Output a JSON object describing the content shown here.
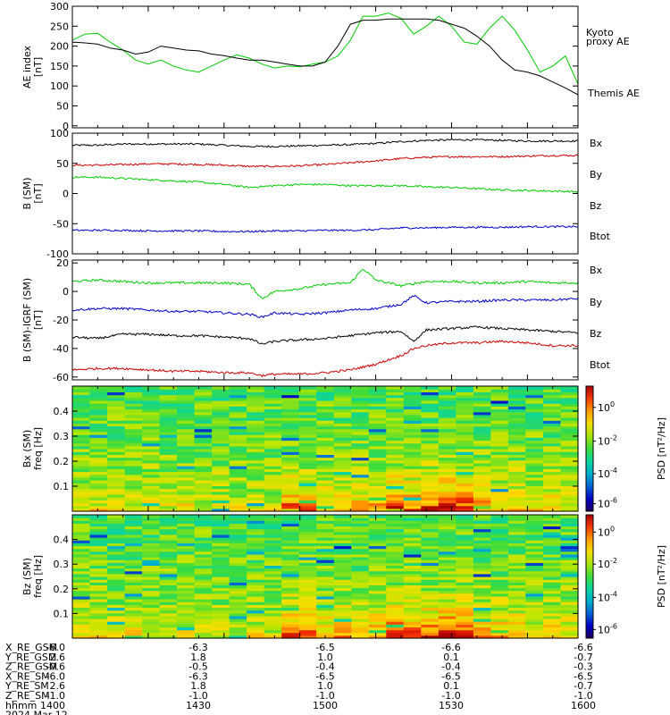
{
  "chart_data": [
    {
      "type": "line",
      "ylabel_line1": "AE index",
      "ylabel_line2": "[nT]",
      "ylim": [
        -5,
        300
      ],
      "yticks": [
        0,
        50,
        100,
        150,
        200,
        250,
        300
      ],
      "xlim": [
        1400,
        1600
      ],
      "legend": [
        {
          "text": "Kyoto",
          "color": "#00cc00"
        },
        {
          "text": "proxy AE",
          "color": "#00cc00"
        },
        {
          "text": "Themis AE",
          "color": "#000000"
        }
      ],
      "series": [
        {
          "name": "Kyoto proxy AE",
          "color": "#00cc00",
          "x": [
            1400,
            1405,
            1410,
            1415,
            1420,
            1425,
            1430,
            1435,
            1440,
            1445,
            1450,
            1455,
            1460,
            1465,
            1470,
            1475,
            1480,
            1485,
            1490,
            1495,
            1500,
            1505,
            1510,
            1515,
            1520,
            1525,
            1530,
            1535,
            1540,
            1545,
            1550,
            1555,
            1560,
            1565,
            1570,
            1575,
            1580,
            1585,
            1590,
            1595,
            1600
          ],
          "y": [
            215,
            230,
            232,
            210,
            190,
            165,
            155,
            165,
            150,
            140,
            135,
            150,
            165,
            178,
            170,
            155,
            145,
            150,
            148,
            155,
            160,
            175,
            215,
            275,
            275,
            283,
            270,
            230,
            250,
            275,
            250,
            210,
            205,
            245,
            275,
            240,
            190,
            135,
            150,
            175,
            105
          ]
        },
        {
          "name": "Themis AE",
          "color": "#000000",
          "x": [
            1400,
            1405,
            1410,
            1415,
            1420,
            1425,
            1430,
            1435,
            1440,
            1445,
            1450,
            1455,
            1460,
            1465,
            1470,
            1475,
            1480,
            1485,
            1490,
            1495,
            1500,
            1505,
            1510,
            1515,
            1520,
            1525,
            1530,
            1535,
            1540,
            1545,
            1550,
            1555,
            1560,
            1565,
            1570,
            1575,
            1580,
            1585,
            1590,
            1595,
            1600
          ],
          "y": [
            210,
            208,
            205,
            195,
            190,
            180,
            185,
            200,
            195,
            190,
            188,
            180,
            176,
            170,
            165,
            165,
            160,
            155,
            150,
            150,
            160,
            200,
            255,
            265,
            265,
            268,
            268,
            268,
            268,
            265,
            255,
            245,
            225,
            200,
            165,
            140,
            135,
            125,
            110,
            95,
            78
          ]
        }
      ]
    },
    {
      "type": "line",
      "ylabel_line1": "B (SM)",
      "ylabel_line2": "[nT]",
      "ylim": [
        -100,
        100
      ],
      "yticks": [
        -100,
        -50,
        0,
        50,
        100
      ],
      "xlim": [
        1400,
        1600
      ],
      "legend": [
        {
          "text": "Bx",
          "color": "#0000cc"
        },
        {
          "text": "By",
          "color": "#00cc00"
        },
        {
          "text": "Bz",
          "color": "#cc0000"
        },
        {
          "text": "Btot",
          "color": "#000000"
        }
      ],
      "series": [
        {
          "color": "#000000",
          "noise": 1.5,
          "x": [
            1400,
            1410,
            1420,
            1430,
            1440,
            1450,
            1460,
            1470,
            1480,
            1490,
            1500,
            1510,
            1520,
            1530,
            1540,
            1550,
            1560,
            1570,
            1580,
            1590,
            1600
          ],
          "y": [
            80,
            80,
            82,
            82,
            82,
            82,
            80,
            78,
            78,
            79,
            80,
            81,
            83,
            86,
            88,
            89,
            89,
            88,
            87,
            87,
            87
          ]
        },
        {
          "color": "#cc0000",
          "noise": 1.5,
          "x": [
            1400,
            1410,
            1420,
            1430,
            1440,
            1450,
            1460,
            1470,
            1480,
            1490,
            1500,
            1510,
            1520,
            1530,
            1540,
            1550,
            1560,
            1570,
            1580,
            1590,
            1600
          ],
          "y": [
            47,
            47,
            48,
            49,
            49,
            48,
            47,
            45,
            45,
            46,
            48,
            51,
            54,
            58,
            60,
            61,
            61,
            61,
            62,
            63,
            63
          ]
        },
        {
          "color": "#00cc00",
          "noise": 1.5,
          "x": [
            1400,
            1410,
            1420,
            1430,
            1440,
            1450,
            1460,
            1470,
            1480,
            1490,
            1500,
            1510,
            1520,
            1530,
            1540,
            1550,
            1560,
            1570,
            1580,
            1590,
            1600
          ],
          "y": [
            27,
            27,
            25,
            23,
            21,
            19,
            15,
            10,
            13,
            15,
            15,
            13,
            13,
            13,
            11,
            10,
            8,
            6,
            5,
            4,
            3
          ]
        },
        {
          "color": "#0000cc",
          "noise": 1.5,
          "x": [
            1400,
            1410,
            1420,
            1430,
            1440,
            1450,
            1460,
            1470,
            1480,
            1490,
            1500,
            1510,
            1520,
            1530,
            1540,
            1550,
            1560,
            1570,
            1580,
            1590,
            1600
          ],
          "y": [
            -61,
            -61,
            -61,
            -62,
            -62,
            -62,
            -63,
            -63,
            -62,
            -62,
            -61,
            -61,
            -60,
            -57,
            -57,
            -56,
            -56,
            -56,
            -55,
            -55,
            -55
          ]
        }
      ]
    },
    {
      "type": "line",
      "ylabel_line1": "B (SM)-IGRF (SM)",
      "ylabel_line2": "[nT]",
      "ylim": [
        -62,
        22
      ],
      "yticks": [
        -60,
        -40,
        -20,
        0,
        20
      ],
      "xlim": [
        1400,
        1600
      ],
      "legend": [
        {
          "text": "Bx",
          "color": "#0000cc"
        },
        {
          "text": "By",
          "color": "#00cc00"
        },
        {
          "text": "Bz",
          "color": "#cc0000"
        },
        {
          "text": "Btot",
          "color": "#000000"
        }
      ],
      "series": [
        {
          "color": "#00cc00",
          "noise": 0.8,
          "x": [
            1400,
            1410,
            1420,
            1430,
            1440,
            1450,
            1460,
            1470,
            1475,
            1480,
            1490,
            1500,
            1510,
            1515,
            1520,
            1530,
            1540,
            1550,
            1560,
            1570,
            1580,
            1590,
            1600
          ],
          "y": [
            7,
            8,
            7,
            6,
            6,
            6,
            6,
            5,
            -5,
            0,
            2,
            5,
            6,
            16,
            8,
            4,
            7,
            7,
            6,
            6,
            7,
            6,
            6
          ]
        },
        {
          "color": "#0000cc",
          "noise": 0.8,
          "x": [
            1400,
            1410,
            1420,
            1430,
            1440,
            1450,
            1460,
            1470,
            1475,
            1480,
            1490,
            1500,
            1510,
            1520,
            1530,
            1535,
            1540,
            1550,
            1560,
            1570,
            1580,
            1590,
            1600
          ],
          "y": [
            -13,
            -12,
            -12,
            -13,
            -14,
            -14,
            -15,
            -16,
            -18,
            -15,
            -16,
            -15,
            -13,
            -12,
            -9,
            -3,
            -8,
            -7,
            -7,
            -6,
            -6,
            -6,
            -5
          ]
        },
        {
          "color": "#000000",
          "noise": 0.8,
          "x": [
            1400,
            1410,
            1420,
            1430,
            1440,
            1450,
            1460,
            1470,
            1475,
            1480,
            1490,
            1500,
            1510,
            1520,
            1530,
            1535,
            1540,
            1550,
            1560,
            1570,
            1580,
            1590,
            1600
          ],
          "y": [
            -32,
            -33,
            -30,
            -30,
            -31,
            -31,
            -32,
            -33,
            -37,
            -35,
            -34,
            -33,
            -31,
            -29,
            -28,
            -35,
            -27,
            -26,
            -25,
            -26,
            -27,
            -28,
            -29
          ]
        },
        {
          "color": "#cc0000",
          "noise": 0.8,
          "x": [
            1400,
            1410,
            1420,
            1430,
            1440,
            1450,
            1460,
            1470,
            1475,
            1480,
            1490,
            1500,
            1510,
            1520,
            1530,
            1535,
            1540,
            1550,
            1560,
            1570,
            1580,
            1590,
            1600
          ],
          "y": [
            -55,
            -54,
            -54,
            -55,
            -56,
            -56,
            -57,
            -57,
            -59,
            -58,
            -58,
            -57,
            -55,
            -51,
            -45,
            -40,
            -38,
            -36,
            -36,
            -35,
            -36,
            -38,
            -38
          ]
        }
      ]
    },
    {
      "type": "heatmap",
      "ylabel_line1": "Bx (SM)",
      "ylabel_line2": "freq [Hz]",
      "ylim": [
        0,
        0.5
      ],
      "yticks": [
        0.1,
        0.2,
        0.3,
        0.4
      ],
      "ytick_labels": [
        "0.1",
        "0.2",
        "0.3",
        "0.4"
      ],
      "xlim": [
        1400,
        1600
      ],
      "columns": 29,
      "colorbar_label": "PSD [nT²/Hz]",
      "colorbar_ticks": [
        {
          "label": "10",
          "exp": "0",
          "frac": 0.83
        },
        {
          "label": "10",
          "exp": "-2",
          "frac": 0.56
        },
        {
          "label": "10",
          "exp": "-4",
          "frac": 0.3
        },
        {
          "label": "10",
          "exp": "-6",
          "frac": 0.06
        }
      ],
      "activity": [
        0.25,
        0.3,
        0.2,
        0.25,
        0.25,
        0.2,
        0.25,
        0.2,
        0.2,
        0.2,
        0.2,
        0.15,
        0.75,
        0.6,
        0.45,
        0.45,
        0.5,
        0.55,
        0.85,
        0.7,
        0.8,
        1.0,
        0.95,
        0.6,
        0.4,
        0.45,
        0.3,
        0.4,
        0.35
      ]
    },
    {
      "type": "heatmap",
      "ylabel_line1": "Bz (SM)",
      "ylabel_line2": "freq [Hz]",
      "ylim": [
        0,
        0.5
      ],
      "yticks": [
        0.1,
        0.2,
        0.3,
        0.4
      ],
      "ytick_labels": [
        "0.1",
        "0.2",
        "0.3",
        "0.4"
      ],
      "xlim": [
        1400,
        1600
      ],
      "columns": 29,
      "colorbar_label": "PSD [nT²/Hz]",
      "colorbar_ticks": [
        {
          "label": "10",
          "exp": "0",
          "frac": 0.86
        },
        {
          "label": "10",
          "exp": "-2",
          "frac": 0.6
        },
        {
          "label": "10",
          "exp": "-4",
          "frac": 0.33
        },
        {
          "label": "10",
          "exp": "-6",
          "frac": 0.07
        }
      ],
      "activity": [
        0.25,
        0.3,
        0.25,
        0.25,
        0.2,
        0.2,
        0.25,
        0.2,
        0.2,
        0.2,
        0.25,
        0.2,
        0.85,
        0.75,
        0.5,
        0.55,
        0.5,
        0.5,
        0.9,
        0.75,
        0.8,
        0.95,
        0.85,
        0.55,
        0.5,
        0.55,
        0.35,
        0.4,
        0.3
      ]
    }
  ],
  "ephemeris": {
    "rows": [
      {
        "label": "X_RE_GSM",
        "values": [
          "-6.0",
          "-6.3",
          "-6.5",
          "-6.6",
          "-6.6"
        ]
      },
      {
        "label": "Y_RE_GSM",
        "values": [
          "2.6",
          "1.8",
          "1.0",
          "0.1",
          "-0.7"
        ]
      },
      {
        "label": "Z_RE_GSM",
        "values": [
          "-0.6",
          "-0.5",
          "-0.4",
          "-0.4",
          "-0.3"
        ]
      },
      {
        "label": "X_RE_SM",
        "values": [
          "-6.0",
          "-6.3",
          "-6.5",
          "-6.5",
          "-6.5"
        ]
      },
      {
        "label": "Y_RE_SM",
        "values": [
          "2.6",
          "1.8",
          "1.0",
          "0.1",
          "-0.7"
        ]
      },
      {
        "label": "Z_RE_SM",
        "values": [
          "-1.0",
          "-1.0",
          "-1.0",
          "-1.0",
          "-1.0"
        ]
      },
      {
        "label": "hhmm",
        "values": [
          "1400",
          "1430",
          "1500",
          "1530",
          "1600"
        ]
      }
    ],
    "date": "2024 Mar 12"
  }
}
